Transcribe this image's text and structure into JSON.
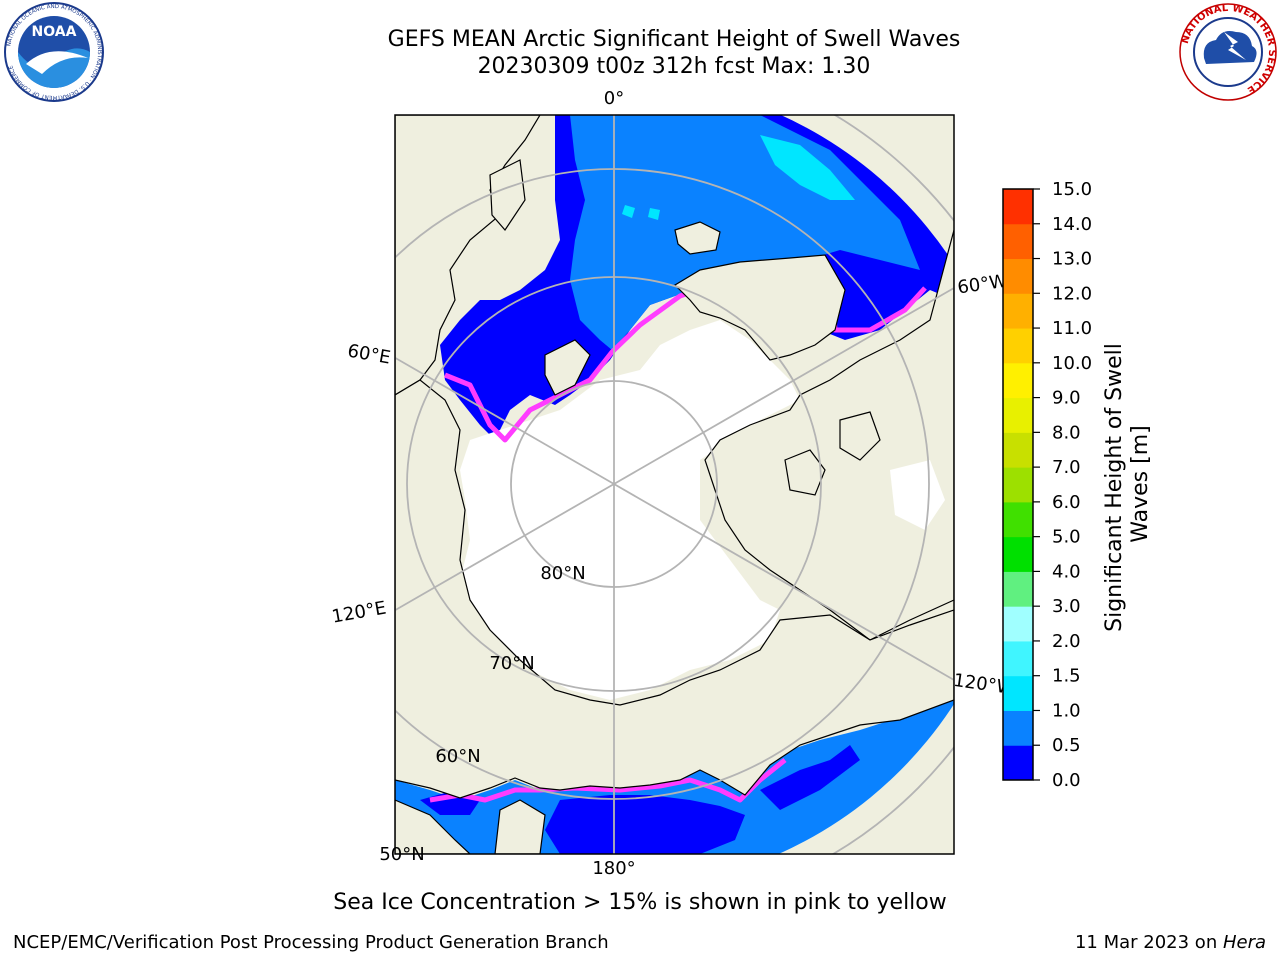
{
  "title": {
    "line1": "GEFS MEAN Arctic Significant Height of Swell Waves",
    "line2": "20230309 t00z 312h fcst   Max: 1.30"
  },
  "logos": {
    "left": {
      "text": "NOAA",
      "ring_text": "NATIONAL OCEANIC AND ATMOSPHERIC ADMINISTRATION · U.S. DEPARTMENT OF COMMERCE"
    },
    "right": {
      "ring_text": "NATIONAL WEATHER SERVICE"
    }
  },
  "map": {
    "projection": "north-polar-stereographic",
    "meridian_labels": [
      {
        "text": "0°"
      },
      {
        "text": "60°E"
      },
      {
        "text": "120°E"
      },
      {
        "text": "180°"
      },
      {
        "text": "120°W"
      },
      {
        "text": "60°W"
      }
    ],
    "parallel_labels": [
      {
        "text": "80°N"
      },
      {
        "text": "70°N"
      },
      {
        "text": "60°N"
      },
      {
        "text": "50°N"
      }
    ],
    "colors": {
      "land": "#efefdf",
      "ocean_swell_low": "#0000ff",
      "ocean_swell_mid": "#0a82ff",
      "ocean_swell_cyan": "#00e6ff",
      "ice": "#ffffff",
      "ice_edge_pink": "#ff3cff",
      "ice_edge_orange": "#ffb040",
      "grid": "#b4b4b4"
    }
  },
  "colorbar": {
    "label": "Significant Height of Swell Waves [m]",
    "label_line1": "Significant Height of Swell",
    "label_line2": "Waves [m]",
    "ticks": [
      "0.0",
      "0.5",
      "1.0",
      "1.5",
      "2.0",
      "3.0",
      "4.0",
      "5.0",
      "6.0",
      "7.0",
      "8.0",
      "9.0",
      "10.0",
      "11.0",
      "12.0",
      "13.0",
      "14.0",
      "15.0"
    ],
    "colors": [
      "#0000ff",
      "#0a82ff",
      "#00e6ff",
      "#40f5ff",
      "#a0ffff",
      "#60f080",
      "#00e000",
      "#40e000",
      "#9de000",
      "#c8e000",
      "#e8f000",
      "#fff000",
      "#ffd000",
      "#ffb000",
      "#ff8c00",
      "#ff6000",
      "#ff3000",
      "#ff0000"
    ]
  },
  "footer": {
    "note": "Sea Ice Concentration > 15% is shown in pink to yellow",
    "credit_left": "NCEP/EMC/Verification Post Processing Product Generation Branch",
    "credit_right_prefix": "11 Mar 2023 on ",
    "credit_right_host": "Hera"
  }
}
